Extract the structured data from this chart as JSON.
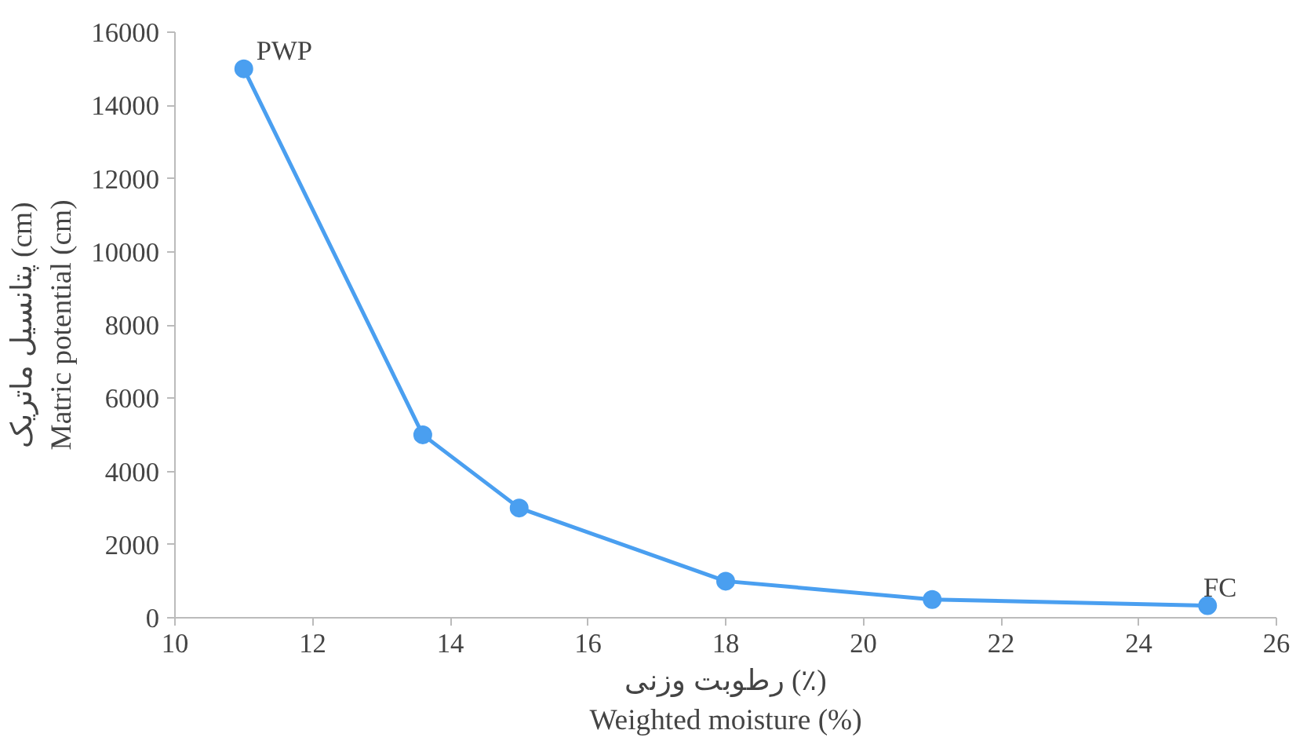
{
  "chart_data": {
    "type": "line",
    "xlabel": "رطوبت وزنی (٪)\nWeighted moisture (%)",
    "ylabel": "پتانسیل ماتریک (cm)\nMatric potential (cm)",
    "x": [
      11,
      13.6,
      15,
      18,
      21,
      25
    ],
    "series": [
      {
        "color": "#4a9ff0",
        "values": [
          15000,
          5000,
          3000,
          1000,
          500,
          330
        ]
      }
    ],
    "xlim": [
      10,
      26
    ],
    "xticks": [
      10,
      12,
      14,
      16,
      18,
      20,
      22,
      24,
      26
    ],
    "ylim": [
      0,
      16000
    ],
    "yticks": [
      0,
      2000,
      4000,
      6000,
      8000,
      10000,
      12000,
      14000,
      16000
    ],
    "grid": false,
    "marker": "circle",
    "line_style": "solid",
    "annotations": [
      {
        "text": "PWP",
        "x": 11,
        "y": 15000
      },
      {
        "text": "FC",
        "x": 25,
        "y": 330
      }
    ]
  }
}
